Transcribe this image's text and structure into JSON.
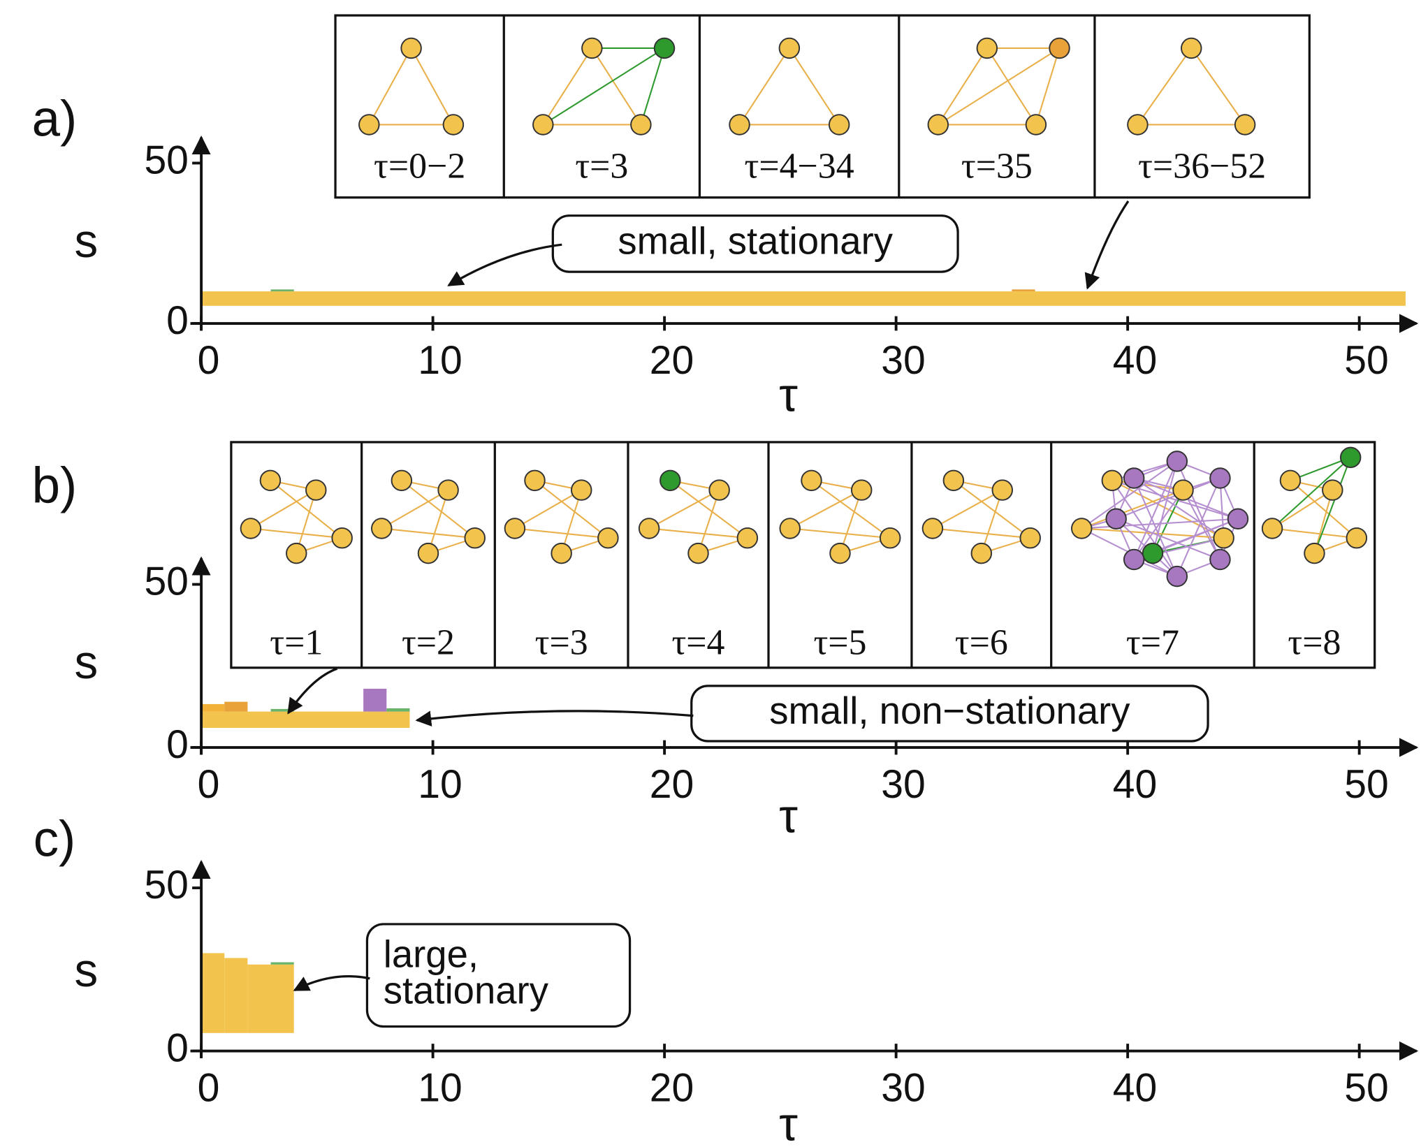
{
  "chart_data": [
    {
      "type": "bar",
      "panel_label": "a)",
      "ylabel": "s",
      "xlabel": "τ",
      "xlim": [
        0,
        52
      ],
      "ylim": [
        0,
        58
      ],
      "xticks": [
        0,
        10,
        20,
        30,
        40,
        50
      ],
      "yticks": [
        0,
        50
      ],
      "bars": [
        {
          "x": [
            0,
            52
          ],
          "y": [
            5.5,
            10
          ],
          "color": "#f2c44e"
        },
        {
          "x": [
            3,
            4
          ],
          "y": [
            10,
            10.6
          ],
          "color": "#6bb36b"
        },
        {
          "x": [
            35,
            36
          ],
          "y": [
            10,
            10.6
          ],
          "color": "#e9a13a"
        }
      ],
      "annotation": [
        "small, stationary"
      ],
      "insets": [
        "τ=0−2",
        "τ=3",
        "τ=4−34",
        "τ=35",
        "τ=36−52"
      ]
    },
    {
      "type": "bar",
      "panel_label": "b)",
      "ylabel": "s",
      "xlabel": "τ",
      "xlim": [
        0,
        52
      ],
      "ylim": [
        0,
        58
      ],
      "xticks": [
        0,
        10,
        20,
        30,
        40,
        50
      ],
      "yticks": [
        0,
        50
      ],
      "bars": [
        {
          "x": [
            0,
            9
          ],
          "y": [
            6,
            11
          ],
          "color": "#f2c44e"
        },
        {
          "x": [
            0,
            1
          ],
          "y": [
            11,
            13.3
          ],
          "color": "#f2b23a"
        },
        {
          "x": [
            1,
            2
          ],
          "y": [
            11,
            14
          ],
          "color": "#e9a13a"
        },
        {
          "x": [
            3,
            4
          ],
          "y": [
            11,
            11.8
          ],
          "color": "#6bb36b"
        },
        {
          "x": [
            7,
            8
          ],
          "y": [
            11,
            18
          ],
          "color": "#a777c0"
        },
        {
          "x": [
            8,
            9
          ],
          "y": [
            11,
            12
          ],
          "color": "#6bb36b"
        }
      ],
      "annotation": [
        "small, non−stationary"
      ],
      "insets": [
        "τ=1",
        "τ=2",
        "τ=3",
        "τ=4",
        "τ=5",
        "τ=6",
        "τ=7",
        "τ=8"
      ]
    },
    {
      "type": "bar",
      "panel_label": "c)",
      "ylabel": "s",
      "xlabel": "τ",
      "xlim": [
        0,
        52
      ],
      "ylim": [
        0,
        58
      ],
      "xticks": [
        0,
        10,
        20,
        30,
        40,
        50
      ],
      "yticks": [
        0,
        50
      ],
      "bars": [
        {
          "x": [
            0,
            1
          ],
          "y": [
            5.5,
            30
          ],
          "color": "#f2c44e"
        },
        {
          "x": [
            1,
            2
          ],
          "y": [
            5.5,
            28.5
          ],
          "color": "#f2c44e"
        },
        {
          "x": [
            2,
            4
          ],
          "y": [
            5.5,
            26.5
          ],
          "color": "#f2c44e"
        },
        {
          "x": [
            3,
            4
          ],
          "y": [
            26.5,
            27.2
          ],
          "color": "#6bb36b"
        }
      ],
      "annotation": [
        "large,",
        "stationary"
      ],
      "insets": []
    }
  ]
}
